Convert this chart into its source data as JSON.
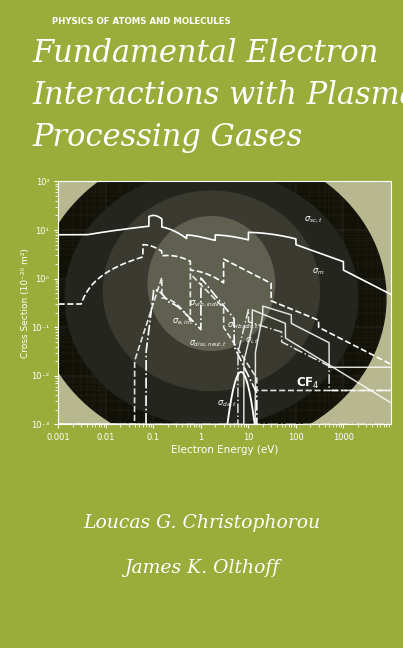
{
  "bg_color": "#9aad3b",
  "title_line1": "Fundamental Electron",
  "title_line2": "Interactions with Plasma",
  "title_line3": "Processing Gases",
  "series_label": "PHYSICS OF ATOMS AND MOLECULES",
  "author1": "Loucas G. Christophorou",
  "author2": "James K. Olthoff",
  "xlabel": "Electron Energy (eV)",
  "ylabel": "Cross Section (10⁻²⁰ m²)",
  "plot_bg_color": "#c8c8a0",
  "xlim": [
    0.001,
    10000
  ],
  "ylim": [
    0.001,
    100
  ],
  "white": "#ffffff",
  "chart_label_fs": 6.0,
  "lw": 1.2
}
